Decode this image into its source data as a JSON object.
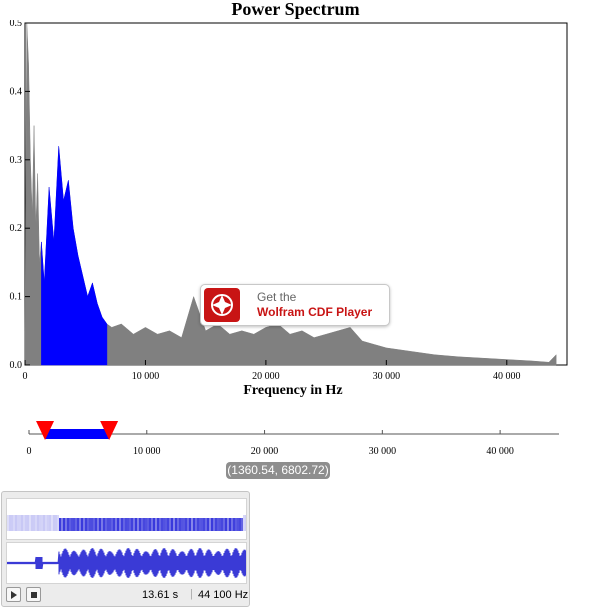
{
  "chart_data": {
    "type": "area",
    "title": "Power Spectrum",
    "xlabel": "Frequency in Hz",
    "ylabel": "",
    "xlim": [
      0,
      45000
    ],
    "ylim": [
      0,
      0.5
    ],
    "x_ticks": [
      0,
      10000,
      20000,
      30000,
      40000
    ],
    "x_tick_labels": [
      "0",
      "10 000",
      "20 000",
      "30 000",
      "40 000"
    ],
    "y_ticks": [
      0.0,
      0.1,
      0.2,
      0.3,
      0.4,
      0.5
    ],
    "y_tick_labels": [
      "0.0",
      "0.1",
      "0.2",
      "0.3",
      "0.4",
      "0.5"
    ],
    "colors": {
      "spectrum": "#808080",
      "selection": "#0000ff",
      "marker": "#ff0000"
    },
    "series": [
      {
        "x": [
          0,
          150,
          300,
          450,
          600,
          750,
          900,
          1050,
          1200,
          1360,
          1600,
          2000,
          2400,
          2800,
          3200,
          3600,
          4000,
          4400,
          4800,
          5200,
          5600,
          6000,
          6400,
          6802,
          7200,
          8000,
          9000,
          10000,
          11000,
          12000,
          13000,
          14000,
          15000,
          16000,
          17000,
          18000,
          19000,
          20000,
          21000,
          22000,
          23000,
          24000,
          25000,
          26000,
          27000,
          28000,
          29000,
          30000,
          32000,
          34000,
          36000,
          38000,
          40000,
          42000,
          43500,
          44100
        ],
        "values": [
          0.05,
          0.5,
          0.44,
          0.3,
          0.22,
          0.35,
          0.2,
          0.28,
          0.15,
          0.18,
          0.12,
          0.26,
          0.18,
          0.32,
          0.24,
          0.27,
          0.2,
          0.16,
          0.13,
          0.1,
          0.12,
          0.09,
          0.07,
          0.06,
          0.055,
          0.06,
          0.045,
          0.055,
          0.045,
          0.05,
          0.04,
          0.1,
          0.05,
          0.06,
          0.045,
          0.05,
          0.045,
          0.055,
          0.06,
          0.045,
          0.05,
          0.04,
          0.045,
          0.05,
          0.055,
          0.035,
          0.03,
          0.025,
          0.02,
          0.015,
          0.012,
          0.01,
          0.008,
          0.006,
          0.004,
          0.015
        ]
      }
    ],
    "selection": [
      1360.54,
      6802.72
    ]
  },
  "overlay": {
    "get": "Get the",
    "name": "Wolfram CDF Player"
  },
  "slider": {
    "ticks": [
      0,
      10000,
      20000,
      30000,
      40000
    ],
    "tick_labels": [
      "0",
      "10 000",
      "20 000",
      "30 000",
      "40 000"
    ],
    "readout": "(1360.54, 6802.72)"
  },
  "player": {
    "duration": "13.61 s",
    "rate": "44 100 Hz"
  }
}
